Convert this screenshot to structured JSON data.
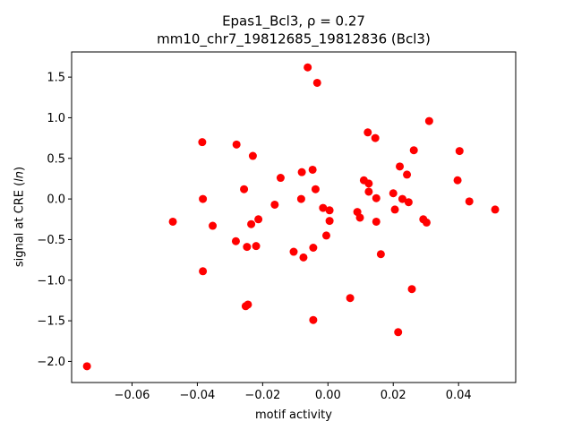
{
  "chart_data": {
    "type": "scatter",
    "title_line1": "Epas1_Bcl3, ",
    "title_rho": "ρ = 0.27",
    "title_line2": "mm10_chr7_19812685_19812836 (Bcl3)",
    "xlabel": "motif activity",
    "ylabel": "signal at CRE (ln)",
    "ylabel_main": "signal at CRE (",
    "ylabel_italic": "ln",
    "ylabel_end": ")",
    "xlim": [
      -0.0785,
      0.0575
    ],
    "ylim": [
      -2.26,
      1.81
    ],
    "xticks": [
      -0.06,
      -0.04,
      -0.02,
      0.0,
      0.02,
      0.04
    ],
    "xtick_labels": [
      "−0.06",
      "−0.04",
      "−0.02",
      "0.00",
      "0.02",
      "0.04"
    ],
    "yticks": [
      -2.0,
      -1.5,
      -1.0,
      -0.5,
      0.0,
      0.5,
      1.0,
      1.5
    ],
    "ytick_labels": [
      "−2.0",
      "−1.5",
      "−1.0",
      "−0.5",
      "0.0",
      "0.5",
      "1.0",
      "1.5"
    ],
    "marker_color": "#ff0000",
    "grid": false,
    "points": [
      {
        "x": -0.0738,
        "y": -2.06
      },
      {
        "x": -0.0475,
        "y": -0.28
      },
      {
        "x": -0.0385,
        "y": 0.7
      },
      {
        "x": -0.0383,
        "y": 0.0
      },
      {
        "x": -0.0383,
        "y": -0.89
      },
      {
        "x": -0.0353,
        "y": -0.33
      },
      {
        "x": -0.028,
        "y": 0.67
      },
      {
        "x": -0.0282,
        "y": -0.52
      },
      {
        "x": -0.0257,
        "y": 0.12
      },
      {
        "x": -0.0248,
        "y": -0.59
      },
      {
        "x": -0.0252,
        "y": -1.32
      },
      {
        "x": -0.0245,
        "y": -1.3
      },
      {
        "x": -0.0235,
        "y": -0.31
      },
      {
        "x": -0.023,
        "y": 0.53
      },
      {
        "x": -0.022,
        "y": -0.58
      },
      {
        "x": -0.0213,
        "y": -0.25
      },
      {
        "x": -0.0163,
        "y": -0.07
      },
      {
        "x": -0.0145,
        "y": 0.26
      },
      {
        "x": -0.0105,
        "y": -0.65
      },
      {
        "x": -0.0082,
        "y": 0.0
      },
      {
        "x": -0.008,
        "y": 0.33
      },
      {
        "x": -0.0075,
        "y": -0.72
      },
      {
        "x": -0.0062,
        "y": 1.62
      },
      {
        "x": -0.0047,
        "y": 0.36
      },
      {
        "x": -0.0045,
        "y": -0.6
      },
      {
        "x": -0.0045,
        "y": -1.49
      },
      {
        "x": -0.0038,
        "y": 0.12
      },
      {
        "x": -0.0033,
        "y": 1.43
      },
      {
        "x": -0.0015,
        "y": -0.11
      },
      {
        "x": -0.0005,
        "y": -0.45
      },
      {
        "x": 0.0005,
        "y": -0.14
      },
      {
        "x": 0.0005,
        "y": -0.27
      },
      {
        "x": 0.0068,
        "y": -1.22
      },
      {
        "x": 0.009,
        "y": -0.16
      },
      {
        "x": 0.0098,
        "y": -0.23
      },
      {
        "x": 0.011,
        "y": 0.23
      },
      {
        "x": 0.0122,
        "y": 0.82
      },
      {
        "x": 0.0125,
        "y": 0.19
      },
      {
        "x": 0.0125,
        "y": 0.09
      },
      {
        "x": 0.0145,
        "y": 0.75
      },
      {
        "x": 0.0148,
        "y": 0.01
      },
      {
        "x": 0.0148,
        "y": -0.28
      },
      {
        "x": 0.0162,
        "y": -0.68
      },
      {
        "x": 0.02,
        "y": 0.07
      },
      {
        "x": 0.0205,
        "y": -0.13
      },
      {
        "x": 0.0215,
        "y": -1.64
      },
      {
        "x": 0.022,
        "y": 0.4
      },
      {
        "x": 0.0228,
        "y": 0.0
      },
      {
        "x": 0.0242,
        "y": 0.3
      },
      {
        "x": 0.0247,
        "y": -0.04
      },
      {
        "x": 0.0257,
        "y": -1.11
      },
      {
        "x": 0.0263,
        "y": 0.6
      },
      {
        "x": 0.0292,
        "y": -0.25
      },
      {
        "x": 0.0302,
        "y": -0.29
      },
      {
        "x": 0.031,
        "y": 0.96
      },
      {
        "x": 0.0397,
        "y": 0.23
      },
      {
        "x": 0.0403,
        "y": 0.59
      },
      {
        "x": 0.0433,
        "y": -0.03
      },
      {
        "x": 0.0512,
        "y": -0.13
      }
    ]
  }
}
